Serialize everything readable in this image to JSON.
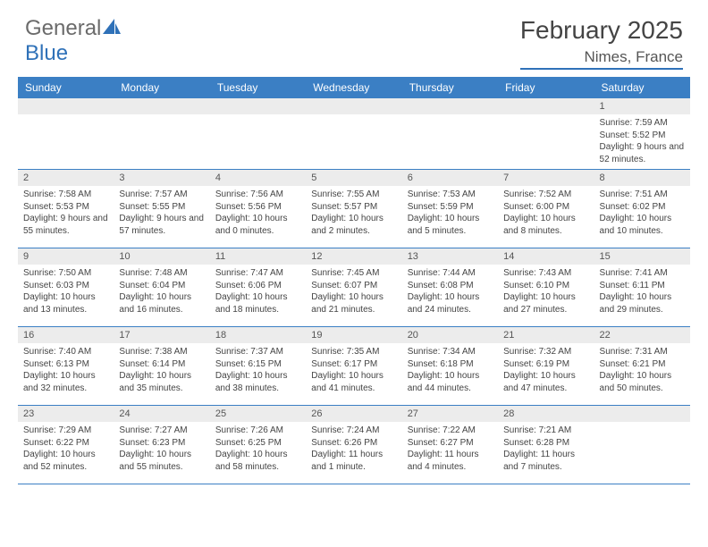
{
  "logo": {
    "text_gray": "General",
    "text_blue": "Blue"
  },
  "title": "February 2025",
  "location": "Nimes, France",
  "colors": {
    "header_bg": "#3b7fc4",
    "header_text": "#ffffff",
    "daynum_bg": "#ececec",
    "border": "#3b7fc4",
    "body_text": "#444444",
    "logo_gray": "#6b6b6b",
    "logo_blue": "#2f71b8"
  },
  "day_headers": [
    "Sunday",
    "Monday",
    "Tuesday",
    "Wednesday",
    "Thursday",
    "Friday",
    "Saturday"
  ],
  "weeks": [
    [
      {
        "n": "",
        "lines": []
      },
      {
        "n": "",
        "lines": []
      },
      {
        "n": "",
        "lines": []
      },
      {
        "n": "",
        "lines": []
      },
      {
        "n": "",
        "lines": []
      },
      {
        "n": "",
        "lines": []
      },
      {
        "n": "1",
        "lines": [
          "Sunrise: 7:59 AM",
          "Sunset: 5:52 PM",
          "Daylight: 9 hours and 52 minutes."
        ]
      }
    ],
    [
      {
        "n": "2",
        "lines": [
          "Sunrise: 7:58 AM",
          "Sunset: 5:53 PM",
          "Daylight: 9 hours and 55 minutes."
        ]
      },
      {
        "n": "3",
        "lines": [
          "Sunrise: 7:57 AM",
          "Sunset: 5:55 PM",
          "Daylight: 9 hours and 57 minutes."
        ]
      },
      {
        "n": "4",
        "lines": [
          "Sunrise: 7:56 AM",
          "Sunset: 5:56 PM",
          "Daylight: 10 hours and 0 minutes."
        ]
      },
      {
        "n": "5",
        "lines": [
          "Sunrise: 7:55 AM",
          "Sunset: 5:57 PM",
          "Daylight: 10 hours and 2 minutes."
        ]
      },
      {
        "n": "6",
        "lines": [
          "Sunrise: 7:53 AM",
          "Sunset: 5:59 PM",
          "Daylight: 10 hours and 5 minutes."
        ]
      },
      {
        "n": "7",
        "lines": [
          "Sunrise: 7:52 AM",
          "Sunset: 6:00 PM",
          "Daylight: 10 hours and 8 minutes."
        ]
      },
      {
        "n": "8",
        "lines": [
          "Sunrise: 7:51 AM",
          "Sunset: 6:02 PM",
          "Daylight: 10 hours and 10 minutes."
        ]
      }
    ],
    [
      {
        "n": "9",
        "lines": [
          "Sunrise: 7:50 AM",
          "Sunset: 6:03 PM",
          "Daylight: 10 hours and 13 minutes."
        ]
      },
      {
        "n": "10",
        "lines": [
          "Sunrise: 7:48 AM",
          "Sunset: 6:04 PM",
          "Daylight: 10 hours and 16 minutes."
        ]
      },
      {
        "n": "11",
        "lines": [
          "Sunrise: 7:47 AM",
          "Sunset: 6:06 PM",
          "Daylight: 10 hours and 18 minutes."
        ]
      },
      {
        "n": "12",
        "lines": [
          "Sunrise: 7:45 AM",
          "Sunset: 6:07 PM",
          "Daylight: 10 hours and 21 minutes."
        ]
      },
      {
        "n": "13",
        "lines": [
          "Sunrise: 7:44 AM",
          "Sunset: 6:08 PM",
          "Daylight: 10 hours and 24 minutes."
        ]
      },
      {
        "n": "14",
        "lines": [
          "Sunrise: 7:43 AM",
          "Sunset: 6:10 PM",
          "Daylight: 10 hours and 27 minutes."
        ]
      },
      {
        "n": "15",
        "lines": [
          "Sunrise: 7:41 AM",
          "Sunset: 6:11 PM",
          "Daylight: 10 hours and 29 minutes."
        ]
      }
    ],
    [
      {
        "n": "16",
        "lines": [
          "Sunrise: 7:40 AM",
          "Sunset: 6:13 PM",
          "Daylight: 10 hours and 32 minutes."
        ]
      },
      {
        "n": "17",
        "lines": [
          "Sunrise: 7:38 AM",
          "Sunset: 6:14 PM",
          "Daylight: 10 hours and 35 minutes."
        ]
      },
      {
        "n": "18",
        "lines": [
          "Sunrise: 7:37 AM",
          "Sunset: 6:15 PM",
          "Daylight: 10 hours and 38 minutes."
        ]
      },
      {
        "n": "19",
        "lines": [
          "Sunrise: 7:35 AM",
          "Sunset: 6:17 PM",
          "Daylight: 10 hours and 41 minutes."
        ]
      },
      {
        "n": "20",
        "lines": [
          "Sunrise: 7:34 AM",
          "Sunset: 6:18 PM",
          "Daylight: 10 hours and 44 minutes."
        ]
      },
      {
        "n": "21",
        "lines": [
          "Sunrise: 7:32 AM",
          "Sunset: 6:19 PM",
          "Daylight: 10 hours and 47 minutes."
        ]
      },
      {
        "n": "22",
        "lines": [
          "Sunrise: 7:31 AM",
          "Sunset: 6:21 PM",
          "Daylight: 10 hours and 50 minutes."
        ]
      }
    ],
    [
      {
        "n": "23",
        "lines": [
          "Sunrise: 7:29 AM",
          "Sunset: 6:22 PM",
          "Daylight: 10 hours and 52 minutes."
        ]
      },
      {
        "n": "24",
        "lines": [
          "Sunrise: 7:27 AM",
          "Sunset: 6:23 PM",
          "Daylight: 10 hours and 55 minutes."
        ]
      },
      {
        "n": "25",
        "lines": [
          "Sunrise: 7:26 AM",
          "Sunset: 6:25 PM",
          "Daylight: 10 hours and 58 minutes."
        ]
      },
      {
        "n": "26",
        "lines": [
          "Sunrise: 7:24 AM",
          "Sunset: 6:26 PM",
          "Daylight: 11 hours and 1 minute."
        ]
      },
      {
        "n": "27",
        "lines": [
          "Sunrise: 7:22 AM",
          "Sunset: 6:27 PM",
          "Daylight: 11 hours and 4 minutes."
        ]
      },
      {
        "n": "28",
        "lines": [
          "Sunrise: 7:21 AM",
          "Sunset: 6:28 PM",
          "Daylight: 11 hours and 7 minutes."
        ]
      },
      {
        "n": "",
        "lines": []
      }
    ]
  ]
}
